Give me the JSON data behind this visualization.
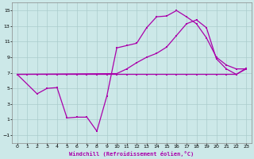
{
  "xlabel": "Windchill (Refroidissement éolien,°C)",
  "bg_color": "#cce8e8",
  "grid_color": "#aacccc",
  "line_color": "#aa00aa",
  "xlim": [
    -0.5,
    23.5
  ],
  "ylim": [
    -2.0,
    16.0
  ],
  "xticks": [
    0,
    1,
    2,
    3,
    4,
    5,
    6,
    7,
    8,
    9,
    10,
    11,
    12,
    13,
    14,
    15,
    16,
    17,
    18,
    19,
    20,
    21,
    22,
    23
  ],
  "yticks": [
    -1,
    1,
    3,
    5,
    7,
    9,
    11,
    13,
    15
  ],
  "line_flat_x": [
    0,
    1,
    2,
    3,
    4,
    5,
    6,
    7,
    8,
    9,
    10,
    11,
    12,
    13,
    14,
    15,
    16,
    17,
    18,
    19,
    20,
    21,
    22,
    23
  ],
  "line_flat_y": [
    6.8,
    6.8,
    6.8,
    6.8,
    6.8,
    6.8,
    6.8,
    6.8,
    6.8,
    6.8,
    6.8,
    6.8,
    6.8,
    6.8,
    6.8,
    6.8,
    6.8,
    6.8,
    6.8,
    6.8,
    6.8,
    6.8,
    6.8,
    7.6
  ],
  "line_zigzag_x": [
    0,
    2,
    3,
    4,
    5,
    6,
    7,
    8,
    9,
    10,
    11,
    12,
    13,
    14,
    15,
    16,
    17,
    18,
    19,
    20,
    21,
    22,
    23
  ],
  "line_zigzag_y": [
    6.8,
    4.3,
    5.0,
    5.1,
    1.2,
    1.3,
    1.3,
    -0.5,
    4.0,
    10.2,
    10.5,
    10.8,
    12.8,
    14.2,
    14.3,
    15.0,
    14.2,
    13.3,
    11.5,
    9.0,
    8.0,
    7.5,
    7.5
  ],
  "line_diag_x": [
    0,
    10,
    11,
    12,
    13,
    14,
    15,
    16,
    17,
    18,
    19,
    20,
    21,
    22,
    23
  ],
  "line_diag_y": [
    6.8,
    6.9,
    7.5,
    8.3,
    9.0,
    9.5,
    10.3,
    11.8,
    13.3,
    13.8,
    12.8,
    8.8,
    7.5,
    6.8,
    7.5
  ]
}
